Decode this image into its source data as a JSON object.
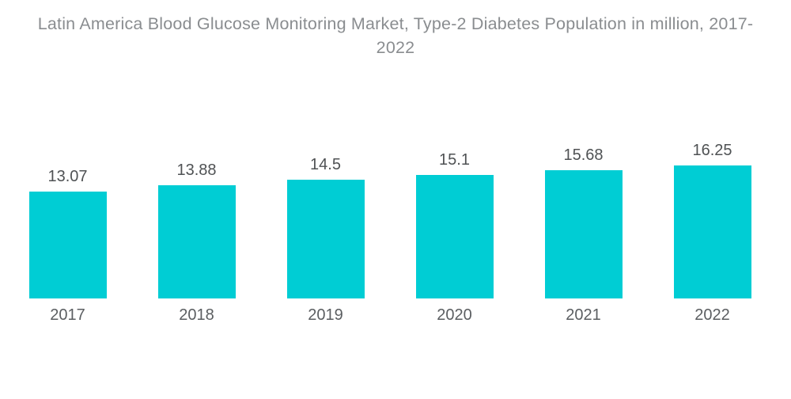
{
  "title": "Latin America Blood Glucose Monitoring Market, Type-2 Diabetes Population in million, 2017-2022",
  "colors": {
    "background": "#FFFFFF",
    "bar": "#00CDD4",
    "title_text": "#8A8D90",
    "value_label_text": "#4F5254",
    "axis_label_text": "#5B5E61"
  },
  "chart_data": {
    "type": "bar",
    "title": "Latin America Blood Glucose Monitoring Market, Type-2 Diabetes Population in million, 2017-2022",
    "categories": [
      "2017",
      "2018",
      "2019",
      "2020",
      "2021",
      "2022"
    ],
    "values": [
      13.07,
      13.88,
      14.5,
      15.1,
      15.68,
      16.25
    ],
    "value_labels": [
      "13.07",
      "13.88",
      "14.5",
      "15.1",
      "15.68",
      "16.25"
    ],
    "xlabel": "",
    "ylabel": "",
    "ylim": [
      0,
      16.25
    ],
    "grid": false,
    "legend": false,
    "bar_color": "#00CDD4"
  }
}
